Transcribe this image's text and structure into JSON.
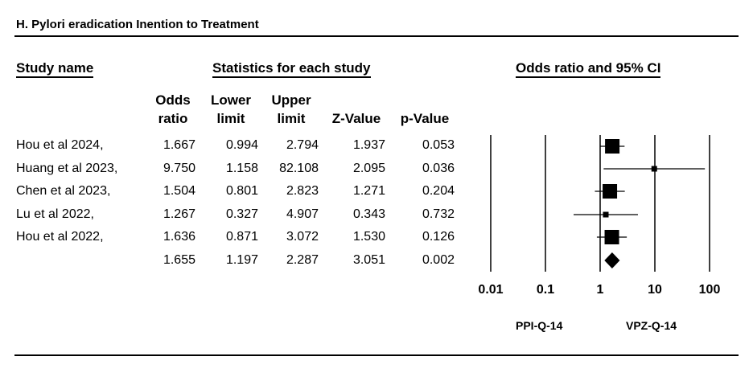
{
  "title": "H. Pylori eradication Inention to Treatment",
  "headers": {
    "study_name": "Study name",
    "statistics": "Statistics for each study",
    "forest": "Odds ratio and 95% CI",
    "odds": [
      "Odds",
      "ratio"
    ],
    "lower": [
      "Lower",
      "limit"
    ],
    "upper": [
      "Upper",
      "limit"
    ],
    "z": "Z-Value",
    "p": "p-Value"
  },
  "rows": [
    {
      "name": "Hou et al 2024,",
      "or": "1.667",
      "lower": "0.994",
      "upper": "2.794",
      "z": "1.937",
      "p": "0.053"
    },
    {
      "name": "Huang et al 2023,",
      "or": "9.750",
      "lower": "1.158",
      "upper": "82.108",
      "z": "2.095",
      "p": "0.036"
    },
    {
      "name": "Chen et al 2023,",
      "or": "1.504",
      "lower": "0.801",
      "upper": "2.823",
      "z": "1.271",
      "p": "0.204"
    },
    {
      "name": "Lu et al 2022,",
      "or": "1.267",
      "lower": "0.327",
      "upper": "4.907",
      "z": "0.343",
      "p": "0.732"
    },
    {
      "name": "Hou et al 2022,",
      "or": "1.636",
      "lower": "0.871",
      "upper": "3.072",
      "z": "1.530",
      "p": "0.126"
    }
  ],
  "summary": {
    "name": "",
    "or": "1.655",
    "lower": "1.197",
    "upper": "2.287",
    "z": "3.051",
    "p": "0.002"
  },
  "favors": {
    "left": "PPI-Q-14",
    "right": "VPZ-Q-14"
  },
  "chart_data": {
    "type": "forest",
    "scale": "log",
    "xlim": [
      0.01,
      100
    ],
    "ticks": [
      "0.01",
      "0.1",
      "1",
      "10",
      "100"
    ],
    "tick_values": [
      0.01,
      0.1,
      1,
      10,
      100
    ],
    "studies": [
      {
        "name": "Hou et al 2024,",
        "or": 1.667,
        "lower": 0.994,
        "upper": 2.794,
        "weight": "large"
      },
      {
        "name": "Huang et al 2023,",
        "or": 9.75,
        "lower": 1.158,
        "upper": 82.108,
        "weight": "small"
      },
      {
        "name": "Chen et al 2023,",
        "or": 1.504,
        "lower": 0.801,
        "upper": 2.823,
        "weight": "large"
      },
      {
        "name": "Lu et al 2022,",
        "or": 1.267,
        "lower": 0.327,
        "upper": 4.907,
        "weight": "small"
      },
      {
        "name": "Hou et al 2022,",
        "or": 1.636,
        "lower": 0.871,
        "upper": 3.072,
        "weight": "large"
      }
    ],
    "summary": {
      "or": 1.655,
      "lower": 1.197,
      "upper": 2.287
    }
  }
}
